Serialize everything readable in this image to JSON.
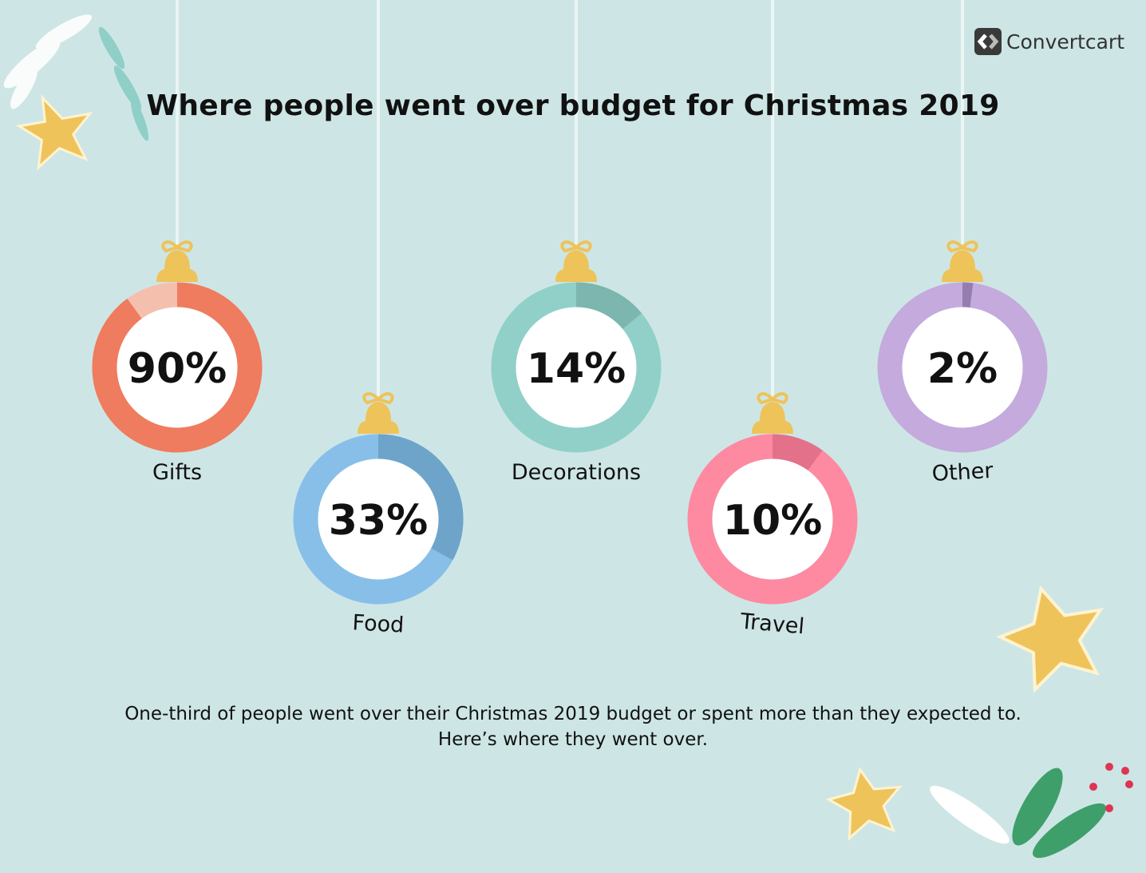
{
  "brand": {
    "name": "Convertcart"
  },
  "caption": {
    "line1": "One-third of people went over their Christmas 2019 budget or spent more than they expected to.",
    "line2": "Here’s where they went over."
  },
  "chart_data": {
    "type": "donut",
    "title": "Where people went over budget for Christmas 2019",
    "unit": "%",
    "categories": [
      "Gifts",
      "Food",
      "Decorations",
      "Travel",
      "Other"
    ],
    "values": [
      90,
      33,
      14,
      10,
      2
    ],
    "labels": [
      "90%",
      "33%",
      "14%",
      "10%",
      "2%"
    ],
    "colors": [
      {
        "fill": "#ef7c5e",
        "track": "#f5bfae"
      },
      {
        "fill": "#6ea4c9",
        "track": "#88bfe9"
      },
      {
        "fill": "#7cb6ae",
        "track": "#90d0c8"
      },
      {
        "fill": "#e3718a",
        "track": "#fd8aa1"
      },
      {
        "fill": "#957db0",
        "track": "#c4aadd"
      }
    ],
    "ornament_cap_color": "#eec35a"
  }
}
